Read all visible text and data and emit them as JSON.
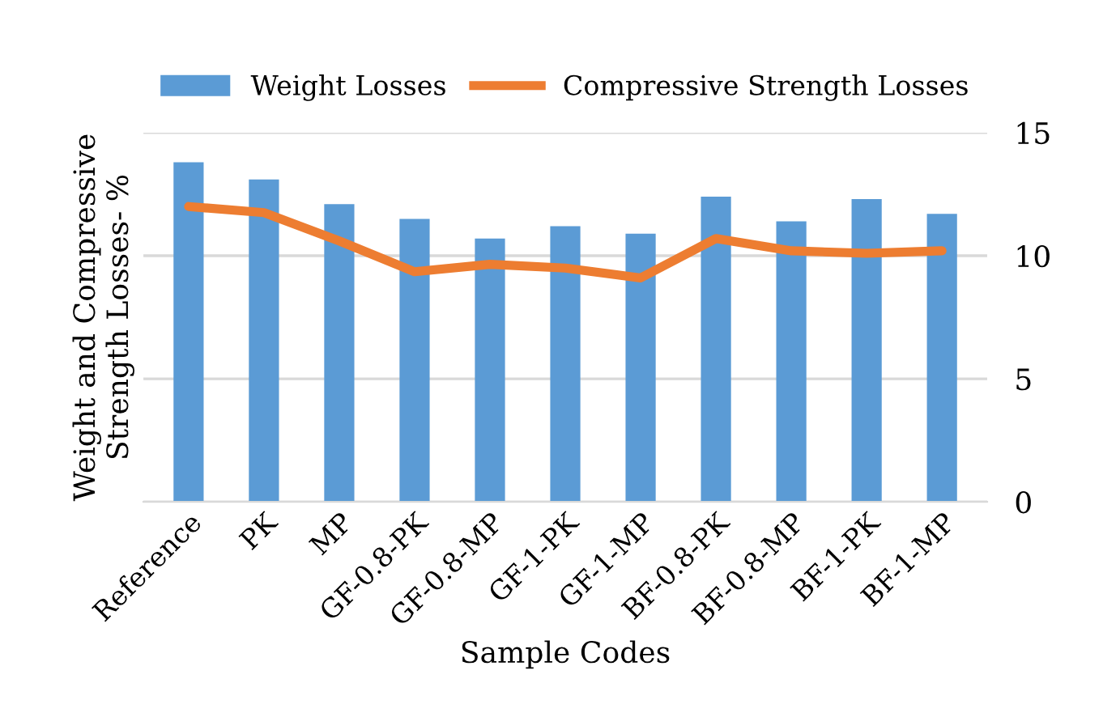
{
  "chart_data": {
    "type": "bar",
    "xlabel": "Sample Codes",
    "ylabel": "Weight and Compressive\nStrength Losses- %",
    "categories": [
      "Reference",
      "PK",
      "MP",
      "GF-0.8-PK",
      "GF-0.8-MP",
      "GF-1-PK",
      "GF-1-MP",
      "BF-0.8-PK",
      "BF-0.8-MP",
      "BF-1-PK",
      "BF-1-MP"
    ],
    "series": [
      {
        "name": "Weight Losses",
        "color": "#5b9bd5",
        "values": [
          13.8,
          13.1,
          12.1,
          11.5,
          10.7,
          11.2,
          10.9,
          12.4,
          11.4,
          12.3,
          11.7
        ]
      },
      {
        "name": "Compressive Strength Losses",
        "color": "#ed7d31",
        "type": "line",
        "values": [
          12.0,
          11.75,
          10.6,
          9.35,
          9.65,
          9.5,
          9.1,
          10.7,
          10.2,
          10.1,
          10.2
        ]
      }
    ],
    "ylim": [
      0,
      15
    ],
    "yticks": [
      0,
      5,
      10,
      15
    ],
    "grid": "y",
    "legend": "top",
    "marker": "none"
  }
}
